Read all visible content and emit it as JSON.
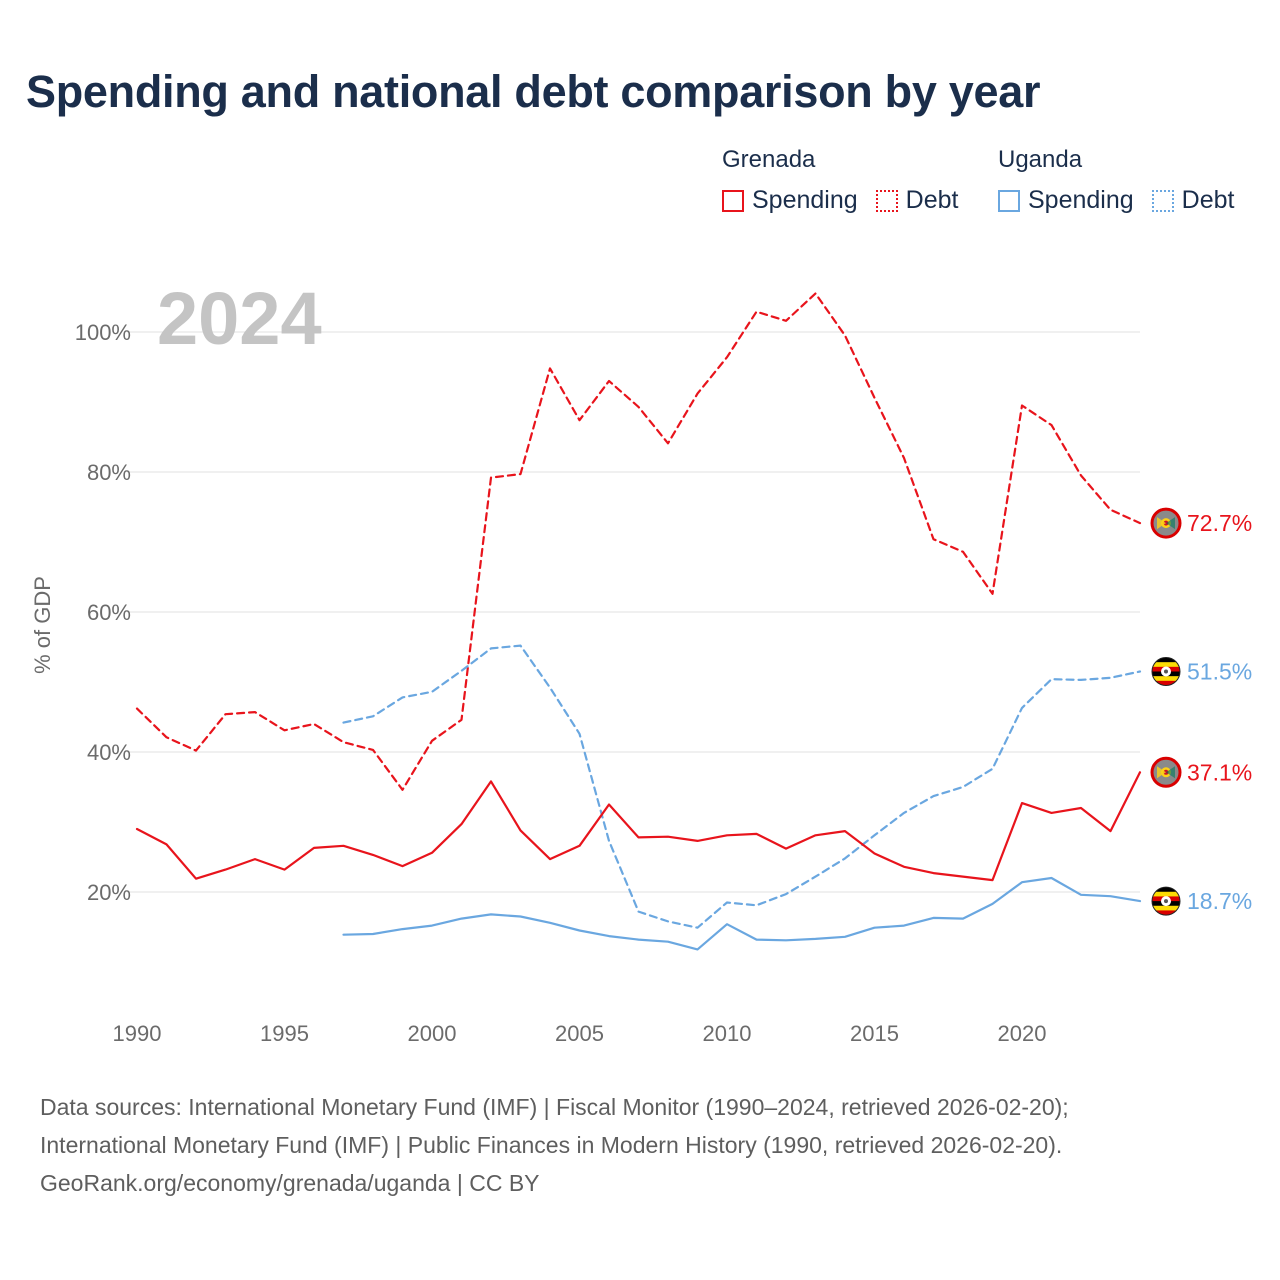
{
  "title": "Spending and national debt comparison by year",
  "legend": {
    "groups": [
      {
        "country": "Grenada",
        "items": [
          "Spending",
          "Debt"
        ]
      },
      {
        "country": "Uganda",
        "items": [
          "Spending",
          "Debt"
        ]
      }
    ]
  },
  "colors": {
    "grenada": "#e8141c",
    "uganda": "#6aa7e0",
    "title": "#1b2e4b",
    "year_watermark": "#c4c4c4"
  },
  "footer": {
    "line1": "Data sources: International Monetary Fund (IMF) | Fiscal Monitor (1990–2024, retrieved 2026-02-20);",
    "line2": "International Monetary Fund (IMF) | Public Finances in Modern History (1990, retrieved 2026-02-20).",
    "line3": "GeoRank.org/economy/grenada/uganda | CC BY"
  },
  "chart_data": {
    "type": "line",
    "year_label": "2024",
    "ylabel": "% of GDP",
    "xlim": [
      1990,
      2024
    ],
    "ylim": [
      5,
      110
    ],
    "x_ticks": [
      1990,
      1995,
      2000,
      2005,
      2010,
      2015,
      2020
    ],
    "y_ticks": [
      20,
      40,
      60,
      80,
      100
    ],
    "y_tick_labels": [
      "20%",
      "40%",
      "60%",
      "80%",
      "100%"
    ],
    "series": [
      {
        "name": "Grenada Debt",
        "country": "Grenada",
        "measure": "Debt",
        "style": "dashed",
        "end_label": "72.7%",
        "x": [
          1990,
          1991,
          1992,
          1993,
          1994,
          1995,
          1996,
          1997,
          1998,
          1999,
          2000,
          2001,
          2002,
          2003,
          2004,
          2005,
          2006,
          2007,
          2008,
          2009,
          2010,
          2011,
          2012,
          2013,
          2014,
          2015,
          2016,
          2017,
          2018,
          2019,
          2020,
          2021,
          2022,
          2023,
          2024
        ],
        "values": [
          46.2,
          42.1,
          40.2,
          45.4,
          45.7,
          43.1,
          44.0,
          41.4,
          40.3,
          34.6,
          41.6,
          44.6,
          79.2,
          79.7,
          94.8,
          87.4,
          93.0,
          89.3,
          84.1,
          91.2,
          96.4,
          102.9,
          101.6,
          105.5,
          99.5,
          90.6,
          82.0,
          70.4,
          68.6,
          62.6,
          89.5,
          86.7,
          79.5,
          74.6,
          72.7
        ]
      },
      {
        "name": "Uganda Debt",
        "country": "Uganda",
        "measure": "Debt",
        "style": "dashed",
        "end_label": "51.5%",
        "x": [
          1997,
          1998,
          1999,
          2000,
          2001,
          2002,
          2003,
          2004,
          2005,
          2006,
          2007,
          2008,
          2009,
          2010,
          2011,
          2012,
          2013,
          2014,
          2015,
          2016,
          2017,
          2018,
          2019,
          2020,
          2021,
          2022,
          2023,
          2024
        ],
        "values": [
          44.2,
          45.1,
          47.8,
          48.6,
          51.6,
          54.8,
          55.2,
          49.2,
          42.6,
          27.3,
          17.2,
          15.8,
          14.9,
          18.5,
          18.1,
          19.7,
          22.2,
          24.8,
          28.1,
          31.3,
          33.7,
          35.0,
          37.6,
          46.3,
          50.4,
          50.3,
          50.6,
          51.5
        ]
      },
      {
        "name": "Grenada Spending",
        "country": "Grenada",
        "measure": "Spending",
        "style": "solid",
        "end_label": "37.1%",
        "x": [
          1990,
          1991,
          1992,
          1993,
          1994,
          1995,
          1996,
          1997,
          1998,
          1999,
          2000,
          2001,
          2002,
          2003,
          2004,
          2005,
          2006,
          2007,
          2008,
          2009,
          2010,
          2011,
          2012,
          2013,
          2014,
          2015,
          2016,
          2017,
          2018,
          2019,
          2020,
          2021,
          2022,
          2023,
          2024
        ],
        "values": [
          29.0,
          26.8,
          21.9,
          23.2,
          24.7,
          23.2,
          26.3,
          26.6,
          25.3,
          23.7,
          25.6,
          29.7,
          35.8,
          28.8,
          24.7,
          26.6,
          32.5,
          27.8,
          27.9,
          27.3,
          28.1,
          28.3,
          26.2,
          28.1,
          28.7,
          25.5,
          23.6,
          22.7,
          22.2,
          21.7,
          32.7,
          31.3,
          32.0,
          28.7,
          37.1
        ]
      },
      {
        "name": "Uganda Spending",
        "country": "Uganda",
        "measure": "Spending",
        "style": "solid",
        "end_label": "18.7%",
        "x": [
          1997,
          1998,
          1999,
          2000,
          2001,
          2002,
          2003,
          2004,
          2005,
          2006,
          2007,
          2008,
          2009,
          2010,
          2011,
          2012,
          2013,
          2014,
          2015,
          2016,
          2017,
          2018,
          2019,
          2020,
          2021,
          2022,
          2023,
          2024
        ],
        "values": [
          13.9,
          14.0,
          14.7,
          15.2,
          16.2,
          16.8,
          16.5,
          15.6,
          14.5,
          13.7,
          13.2,
          12.9,
          11.8,
          15.4,
          13.2,
          13.1,
          13.3,
          13.6,
          14.9,
          15.2,
          16.3,
          16.2,
          18.3,
          21.4,
          22.0,
          19.6,
          19.4,
          18.7
        ]
      }
    ]
  }
}
